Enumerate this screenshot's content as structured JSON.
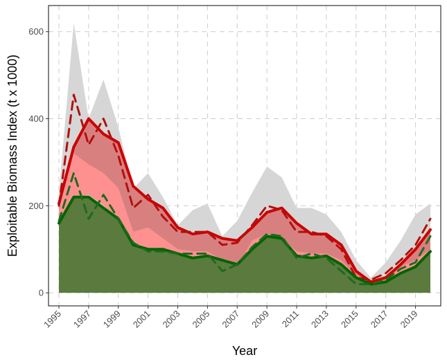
{
  "chart_data": {
    "type": "area",
    "xlabel": "Year",
    "ylabel": "Exploitable Biomass Index (t x 1000)",
    "xlim": [
      1994.3,
      2020.7
    ],
    "ylim": [
      -30,
      660
    ],
    "x_ticks": [
      1995,
      1997,
      1999,
      2001,
      2003,
      2005,
      2007,
      2009,
      2011,
      2013,
      2015,
      2017,
      2019
    ],
    "x_tick_labels": [
      "1995",
      "1997",
      "1999",
      "2001",
      "2003",
      "2005",
      "2007",
      "2009",
      "2011",
      "2013",
      "2015",
      "2017",
      "2019"
    ],
    "y_ticks": [
      0,
      200,
      400,
      600
    ],
    "y_tick_labels": [
      "0",
      "200",
      "400",
      "600"
    ],
    "grid": true,
    "x": [
      1995,
      1996,
      1997,
      1998,
      1999,
      2000,
      2001,
      2002,
      2003,
      2004,
      2005,
      2006,
      2007,
      2008,
      2009,
      2010,
      2011,
      2012,
      2013,
      2014,
      2015,
      2016,
      2017,
      2018,
      2019,
      2020
    ],
    "bands": [
      {
        "color": "#d6d6d6",
        "upper": [
          230,
          620,
          400,
          490,
          380,
          240,
          275,
          220,
          155,
          190,
          205,
          130,
          165,
          230,
          290,
          265,
          195,
          195,
          180,
          140,
          75,
          35,
          70,
          120,
          180,
          205
        ],
        "lower": [
          180,
          220,
          200,
          205,
          160,
          100,
          100,
          105,
          85,
          80,
          70,
          60,
          45,
          95,
          120,
          110,
          85,
          70,
          75,
          55,
          25,
          15,
          20,
          40,
          55,
          90
        ]
      },
      {
        "color": "#ff9090",
        "upper": [
          190,
          320,
          295,
          275,
          240,
          140,
          150,
          125,
          100,
          95,
          95,
          75,
          60,
          120,
          135,
          125,
          95,
          90,
          90,
          75,
          40,
          25,
          25,
          60,
          75,
          100
        ],
        "lower": [
          165,
          220,
          225,
          200,
          170,
          110,
          100,
          100,
          90,
          80,
          75,
          65,
          60,
          85,
          120,
          120,
          85,
          75,
          80,
          65,
          30,
          20,
          20,
          40,
          55,
          95
        ]
      },
      {
        "color": "#d88080",
        "upper": [
          205,
          335,
          400,
          365,
          345,
          245,
          215,
          195,
          150,
          135,
          140,
          125,
          120,
          150,
          185,
          195,
          160,
          135,
          135,
          110,
          50,
          25,
          35,
          65,
          100,
          145
        ],
        "lower": [
          190,
          320,
          295,
          275,
          240,
          140,
          150,
          125,
          100,
          95,
          95,
          75,
          60,
          120,
          135,
          125,
          95,
          90,
          90,
          75,
          40,
          25,
          25,
          60,
          75,
          100
        ]
      },
      {
        "color": "#5a7a3e",
        "upper": [
          160,
          220,
          220,
          195,
          170,
          110,
          100,
          100,
          90,
          80,
          85,
          75,
          65,
          100,
          130,
          125,
          85,
          80,
          85,
          65,
          35,
          20,
          25,
          45,
          60,
          95
        ],
        "lower": [
          0,
          0,
          0,
          0,
          0,
          0,
          0,
          0,
          0,
          0,
          0,
          0,
          0,
          0,
          0,
          0,
          0,
          0,
          0,
          0,
          0,
          0,
          0,
          0,
          0,
          0
        ]
      }
    ],
    "series": [
      {
        "color": "#cc0000",
        "style": "solid",
        "width": 4,
        "values": [
          205,
          335,
          400,
          365,
          345,
          245,
          215,
          195,
          150,
          135,
          140,
          125,
          120,
          150,
          185,
          195,
          160,
          135,
          135,
          110,
          50,
          25,
          35,
          65,
          100,
          145
        ]
      },
      {
        "color": "#b01010",
        "style": "dashed",
        "width": 3,
        "values": [
          200,
          455,
          340,
          400,
          315,
          195,
          225,
          175,
          140,
          140,
          140,
          110,
          115,
          155,
          200,
          190,
          140,
          140,
          130,
          100,
          35,
          30,
          45,
          75,
          110,
          170
        ]
      },
      {
        "color": "#006400",
        "style": "solid",
        "width": 4,
        "values": [
          160,
          220,
          220,
          195,
          170,
          110,
          100,
          100,
          90,
          80,
          85,
          75,
          65,
          100,
          130,
          125,
          85,
          80,
          85,
          65,
          35,
          20,
          25,
          45,
          60,
          95
        ]
      },
      {
        "color": "#1f6a1f",
        "style": "dashed",
        "width": 3,
        "values": [
          165,
          275,
          170,
          225,
          170,
          115,
          95,
          95,
          90,
          90,
          90,
          50,
          65,
          105,
          135,
          130,
          80,
          90,
          80,
          50,
          20,
          20,
          30,
          55,
          70,
          130
        ]
      }
    ]
  }
}
